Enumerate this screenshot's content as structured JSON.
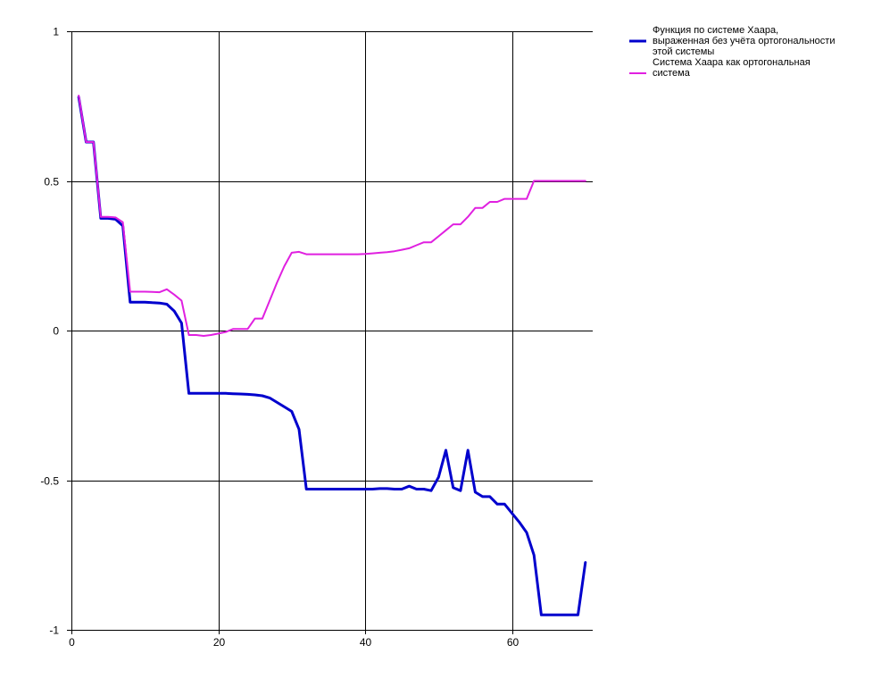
{
  "chart_data": {
    "type": "line",
    "title": "",
    "xlabel": "",
    "ylabel": "",
    "xlim": [
      0,
      71
    ],
    "ylim": [
      -1,
      1
    ],
    "x_ticks": [
      0,
      20,
      40,
      60
    ],
    "y_ticks": [
      1,
      0.5,
      0,
      -0.5,
      -1
    ],
    "x_tick_labels": [
      "0",
      "20",
      "40",
      "60"
    ],
    "y_tick_labels": [
      "1",
      "0.5",
      "0",
      "-0.5",
      "-1"
    ],
    "grid": true,
    "legend_position": "top-right, outside plot",
    "series": [
      {
        "name": "Функция по системе Хаара, выраженная без учёта ортогональности этой системы",
        "legend_lines": [
          "Функция по системе Хаара,",
          "выраженная без учёта ортогональности",
          "этой системы"
        ],
        "color": "#0000CD",
        "x": [
          1,
          2,
          3,
          4,
          5,
          6,
          7,
          8,
          9,
          10,
          11,
          12,
          13,
          14,
          15,
          16,
          17,
          18,
          19,
          20,
          21,
          22,
          23,
          24,
          25,
          26,
          27,
          28,
          29,
          30,
          31,
          32,
          33,
          34,
          35,
          36,
          37,
          38,
          39,
          40,
          41,
          42,
          43,
          44,
          45,
          46,
          47,
          48,
          49,
          50,
          51,
          52,
          53,
          54,
          55,
          56,
          57,
          58,
          59,
          60,
          61,
          62,
          63,
          64,
          65,
          66,
          67,
          68,
          69,
          70
        ],
        "y": [
          0.78,
          0.63,
          0.63,
          0.375,
          0.375,
          0.372,
          0.35,
          0.095,
          0.095,
          0.095,
          0.093,
          0.092,
          0.088,
          0.065,
          0.025,
          -0.21,
          -0.21,
          -0.21,
          -0.21,
          -0.21,
          -0.21,
          -0.211,
          -0.212,
          -0.213,
          -0.215,
          -0.218,
          -0.225,
          -0.24,
          -0.255,
          -0.27,
          -0.33,
          -0.53,
          -0.53,
          -0.53,
          -0.53,
          -0.53,
          -0.53,
          -0.53,
          -0.53,
          -0.53,
          -0.53,
          -0.528,
          -0.528,
          -0.53,
          -0.53,
          -0.52,
          -0.53,
          -0.53,
          -0.535,
          -0.49,
          -0.4,
          -0.525,
          -0.535,
          -0.4,
          -0.54,
          -0.555,
          -0.555,
          -0.58,
          -0.58,
          -0.61,
          -0.64,
          -0.675,
          -0.75,
          -0.95,
          -0.95,
          -0.95,
          -0.95,
          -0.95,
          -0.95,
          -0.775
        ]
      },
      {
        "name": "Система Хаара как ортогональная система",
        "legend_lines": [
          "Система Хаара как ортогональная",
          "система"
        ],
        "color": "#E020E0",
        "x": [
          1,
          2,
          3,
          4,
          5,
          6,
          7,
          8,
          9,
          10,
          11,
          12,
          13,
          14,
          15,
          16,
          17,
          18,
          19,
          20,
          21,
          22,
          23,
          24,
          25,
          26,
          27,
          28,
          29,
          30,
          31,
          32,
          33,
          34,
          35,
          36,
          37,
          38,
          39,
          40,
          41,
          42,
          43,
          44,
          45,
          46,
          47,
          48,
          49,
          50,
          51,
          52,
          53,
          54,
          55,
          56,
          57,
          58,
          59,
          60,
          61,
          62,
          63,
          64,
          65,
          66,
          67,
          68,
          69,
          70
        ],
        "y": [
          0.785,
          0.63,
          0.63,
          0.38,
          0.38,
          0.378,
          0.362,
          0.13,
          0.13,
          0.13,
          0.129,
          0.128,
          0.138,
          0.12,
          0.1,
          -0.015,
          -0.015,
          -0.018,
          -0.015,
          -0.01,
          -0.005,
          0.005,
          0.005,
          0.005,
          0.04,
          0.04,
          0.1,
          0.16,
          0.215,
          0.26,
          0.263,
          0.255,
          0.255,
          0.255,
          0.255,
          0.255,
          0.255,
          0.255,
          0.255,
          0.256,
          0.258,
          0.26,
          0.262,
          0.265,
          0.27,
          0.275,
          0.285,
          0.295,
          0.295,
          0.315,
          0.335,
          0.355,
          0.355,
          0.38,
          0.41,
          0.41,
          0.43,
          0.43,
          0.44,
          0.44,
          0.44,
          0.44,
          0.5,
          0.5,
          0.5,
          0.5,
          0.5,
          0.5,
          0.5,
          0.5
        ]
      }
    ]
  }
}
